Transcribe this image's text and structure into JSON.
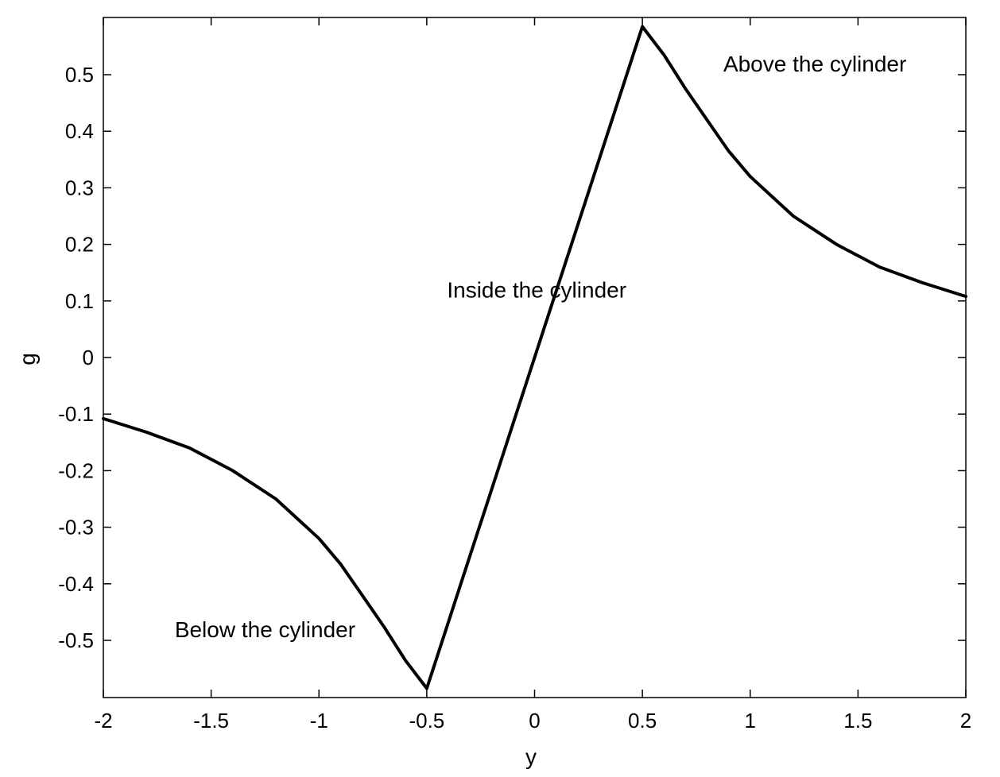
{
  "chart_data": {
    "type": "line",
    "title": "",
    "xlabel": "y",
    "ylabel": "g",
    "xlim": [
      -2,
      2
    ],
    "ylim": [
      -0.6,
      0.6
    ],
    "grid": false,
    "x_ticks": [
      -2,
      -1.5,
      -1,
      -0.5,
      0,
      0.5,
      1,
      1.5,
      2
    ],
    "x_tick_labels": [
      "-2",
      "-1.5",
      "-1",
      "-0.5",
      "0",
      "0.5",
      "1",
      "1.5",
      "2"
    ],
    "y_ticks": [
      -0.5,
      -0.4,
      -0.3,
      -0.2,
      -0.1,
      0,
      0.1,
      0.2,
      0.3,
      0.4,
      0.5
    ],
    "y_tick_labels": [
      "-0.5",
      "-0.4",
      "-0.3",
      "-0.2",
      "-0.1",
      "0",
      "0.1",
      "0.2",
      "0.3",
      "0.4",
      "0.5"
    ],
    "series": [
      {
        "color": "#000000",
        "x": [
          -2,
          -1.8,
          -1.6,
          -1.4,
          -1.2,
          -1.0,
          -0.9,
          -0.8,
          -0.7,
          -0.6,
          -0.5,
          -0.4,
          -0.3,
          -0.2,
          -0.1,
          0,
          0.1,
          0.2,
          0.3,
          0.4,
          0.5,
          0.6,
          0.7,
          0.8,
          0.9,
          1.0,
          1.2,
          1.4,
          1.6,
          1.8,
          2.0
        ],
        "y": [
          -0.108,
          -0.132,
          -0.16,
          -0.2,
          -0.25,
          -0.32,
          -0.365,
          -0.42,
          -0.475,
          -0.535,
          -0.585,
          -0.468,
          -0.351,
          -0.234,
          -0.117,
          0,
          0.117,
          0.234,
          0.351,
          0.468,
          0.585,
          0.535,
          0.475,
          0.42,
          0.365,
          0.32,
          0.25,
          0.2,
          0.16,
          0.132,
          0.108
        ]
      }
    ],
    "annotations": [
      {
        "text": "Above the cylinder",
        "x": 1.3,
        "y": 0.52
      },
      {
        "text": "Inside the cylinder",
        "x": 0.01,
        "y": 0.12
      },
      {
        "text": "Below the cylinder",
        "x": -1.25,
        "y": -0.48
      }
    ]
  }
}
